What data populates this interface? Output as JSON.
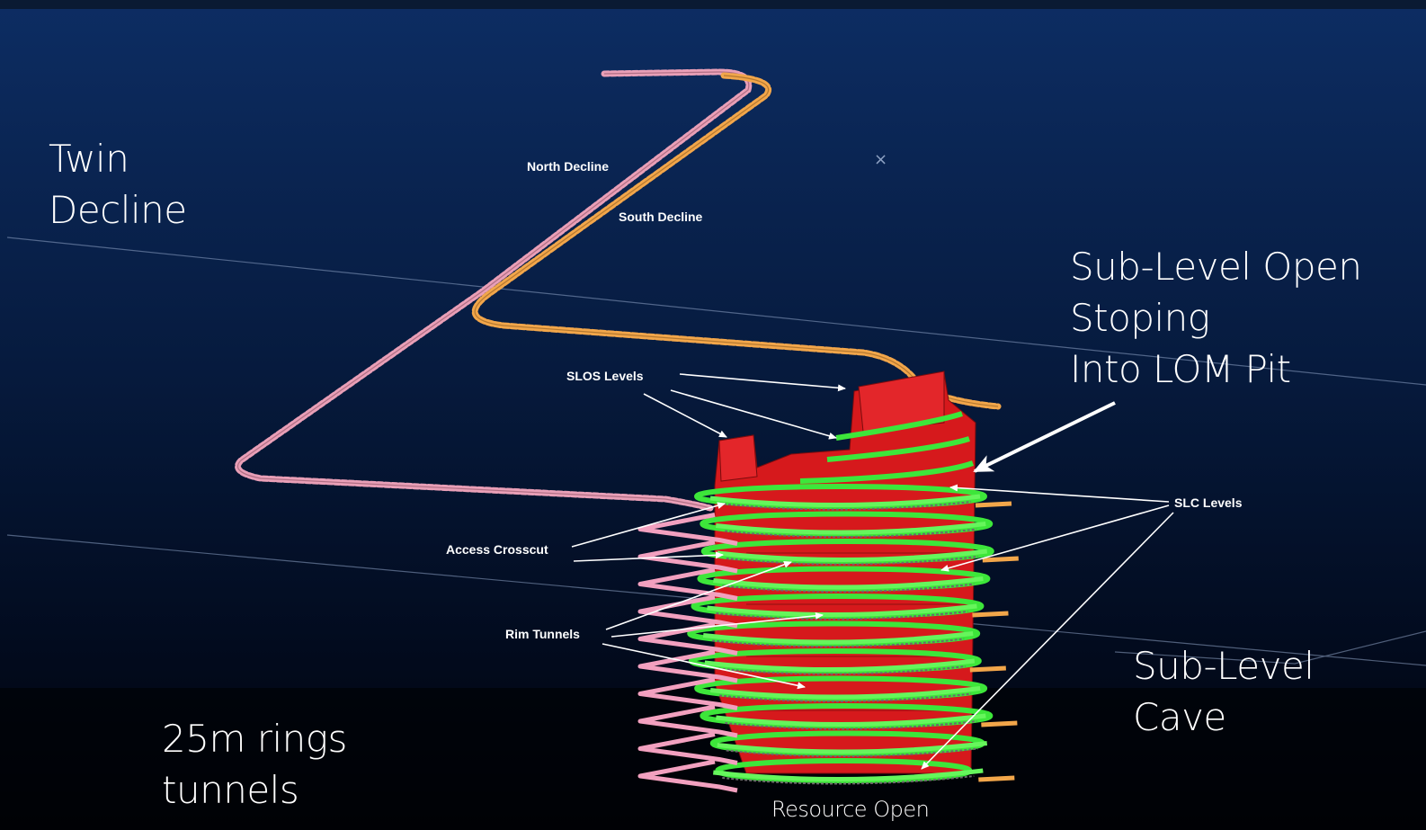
{
  "slide": {
    "twin_decline": "Twin\nDecline",
    "slos_title": "Sub-Level Open\nStoping\nInto LOM Pit",
    "slc_title": "Sub-Level\nCave",
    "rings_title": "25m rings\ntunnels",
    "resource_caption": "Resource Open"
  },
  "labels": {
    "north_decline": "North Decline",
    "south_decline": "South Decline",
    "slos_levels": "SLOS Levels",
    "slc_levels": "SLC Levels",
    "access_crosscut": "Access Crosscut",
    "rim_tunnels": "Rim Tunnels"
  },
  "colors": {
    "bg_top": "#0d2d63",
    "bg_bottom": "#01040c",
    "north_decline": "#e99fb7",
    "south_decline": "#f2a64a",
    "ore_body": "#d6191c",
    "level_ring": "#3de63a",
    "rim_tunnel": "#f2a0bf"
  }
}
